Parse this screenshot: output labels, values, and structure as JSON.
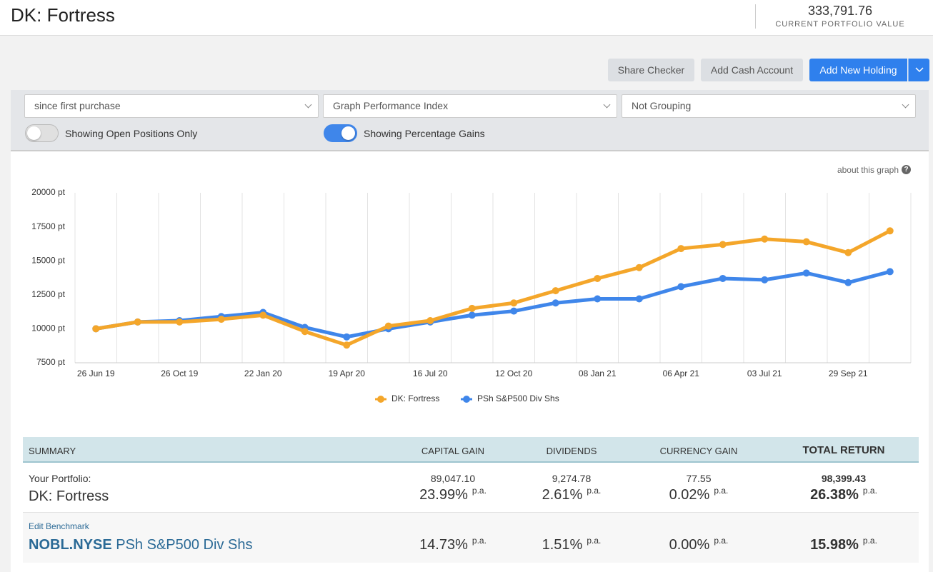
{
  "header": {
    "title": "DK: Fortress",
    "portfolio_value": "333,791.76",
    "portfolio_value_label": "CURRENT PORTFOLIO VALUE"
  },
  "buttons": [
    "Share Checker",
    "Add Cash Account",
    "Add New Holding"
  ],
  "filters": {
    "selects": [
      "since first purchase",
      "Graph Performance Index",
      "Not Grouping"
    ],
    "toggles": [
      {
        "label": "Showing Open Positions Only",
        "on": false
      },
      {
        "label": "Showing Percentage Gains",
        "on": true
      }
    ]
  },
  "graph_help": "about this graph",
  "chart_data": {
    "type": "line",
    "categories": [
      "26 Jun 19",
      null,
      "26 Oct 19",
      null,
      "22 Jan 20",
      null,
      "19 Apr 20",
      null,
      "16 Jul 20",
      null,
      "12 Oct 20",
      null,
      "08 Jan 21",
      null,
      "06 Apr 21",
      null,
      "03 Jul 21",
      null,
      "29 Sep 21",
      null
    ],
    "series": [
      {
        "name": "DK: Fortress",
        "color": "#f4a62a",
        "values": [
          10000,
          10500,
          10500,
          10700,
          11000,
          9800,
          8800,
          10200,
          10600,
          11500,
          11900,
          12800,
          13700,
          14500,
          15900,
          16200,
          16600,
          16400,
          15600,
          17200
        ]
      },
      {
        "name": "PSh S&P500 Div Shs",
        "color": "#3f86ea",
        "values": [
          10000,
          10500,
          10600,
          10900,
          11200,
          10100,
          9400,
          10000,
          10500,
          11000,
          11300,
          11900,
          12200,
          12200,
          13100,
          13700,
          13600,
          14100,
          13400,
          14200
        ]
      }
    ],
    "ylim": [
      7500,
      20000
    ],
    "yticks": [
      {
        "value": 7500,
        "label": "7500 pt"
      },
      {
        "value": 10000,
        "label": "10000 pt"
      },
      {
        "value": 12500,
        "label": "12500 pt"
      },
      {
        "value": 15000,
        "label": "15000 pt"
      },
      {
        "value": 17500,
        "label": "17500 pt"
      },
      {
        "value": 20000,
        "label": "20000 pt"
      }
    ],
    "grid": true,
    "legend": "bottom"
  },
  "summary": {
    "headers": [
      "SUMMARY",
      "CAPITAL GAIN",
      "DIVIDENDS",
      "CURRENCY GAIN",
      "TOTAL RETURN"
    ],
    "per_annum": "p.a.",
    "rows": [
      {
        "label": "Your Portfolio:",
        "name": "DK: Fortress",
        "amounts": [
          "89,047.10",
          "9,274.78",
          "77.55",
          "98,399.43"
        ],
        "rates": [
          "23.99%",
          "2.61%",
          "0.02%",
          "26.38%"
        ]
      },
      {
        "label": "Edit Benchmark",
        "code": "NOBL.NYSE",
        "name": "PSh S&P500 Div Shs",
        "rates": [
          "14.73%",
          "1.51%",
          "0.00%",
          "15.98%"
        ]
      }
    ]
  }
}
